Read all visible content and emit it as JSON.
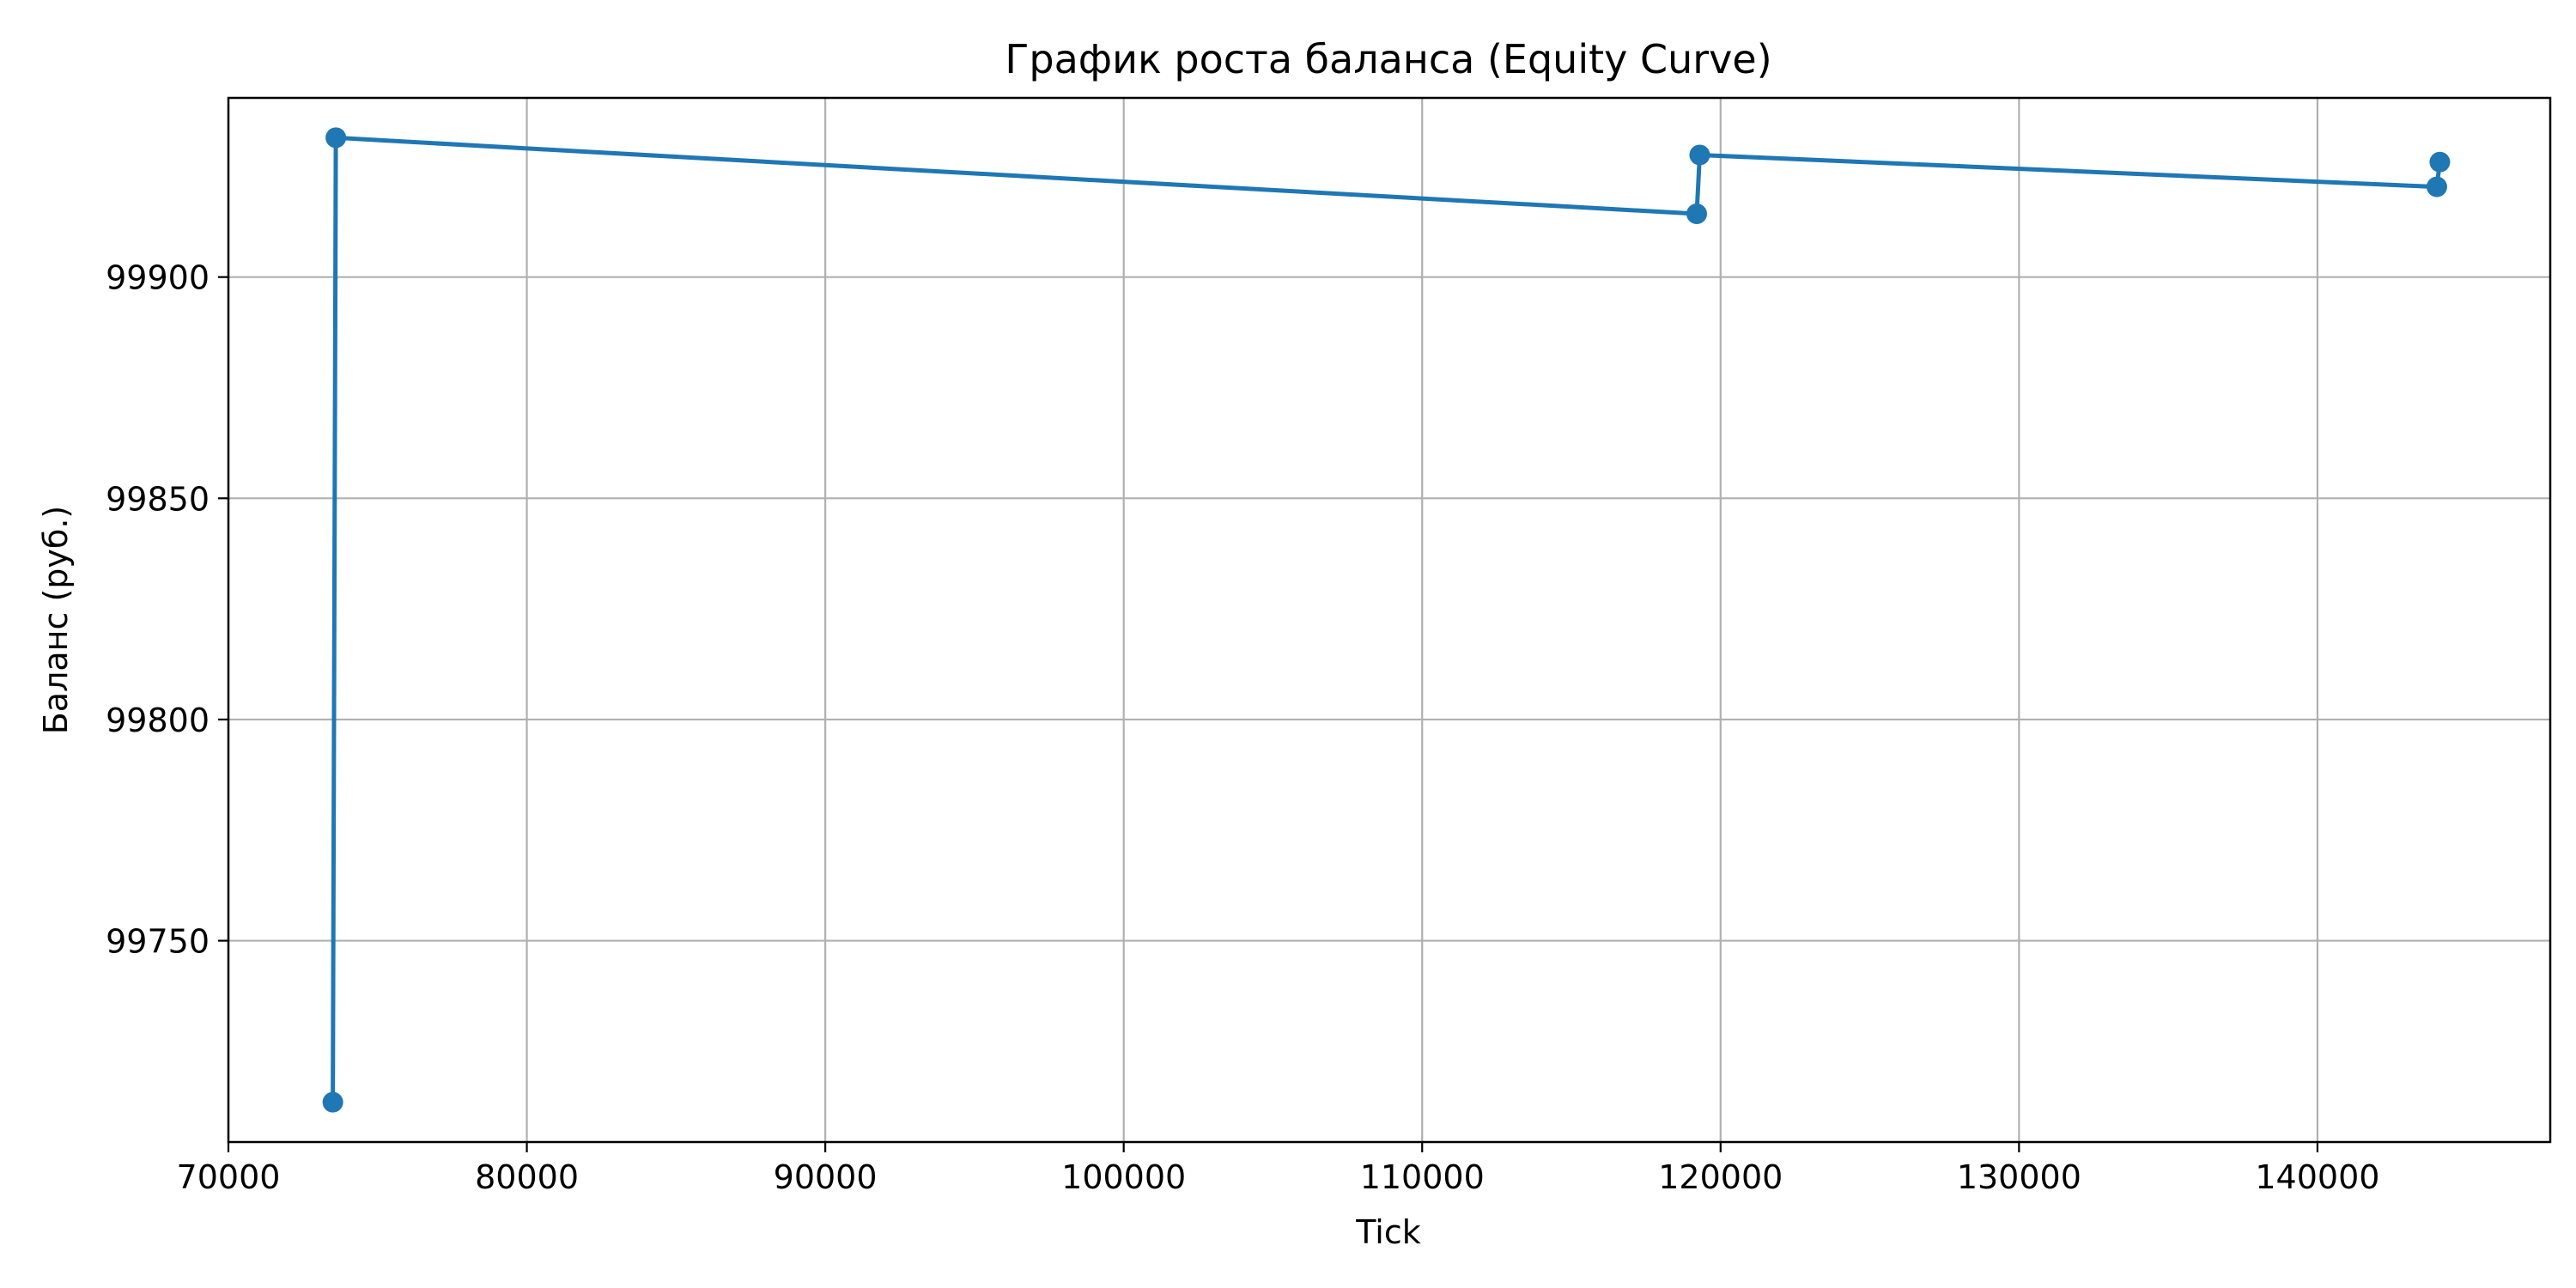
{
  "chart_data": {
    "type": "line",
    "title": "График роста баланса (Equity Curve)",
    "xlabel": "Tick",
    "ylabel": "Баланс (руб.)",
    "xlim": [
      70000,
      147800
    ],
    "ylim": [
      99704.5,
      99940.5
    ],
    "xticks": [
      70000,
      80000,
      90000,
      100000,
      110000,
      120000,
      130000,
      140000
    ],
    "yticks": [
      99750,
      99800,
      99850,
      99900
    ],
    "grid": true,
    "series": [
      {
        "color": "#1f77b4",
        "marker": "circle",
        "points": [
          {
            "x": 73500,
            "y": 99713.5
          },
          {
            "x": 73600,
            "y": 99931.5
          },
          {
            "x": 119200,
            "y": 99914.3
          },
          {
            "x": 119300,
            "y": 99927.6
          },
          {
            "x": 144000,
            "y": 99920.4
          },
          {
            "x": 144100,
            "y": 99926.0
          }
        ]
      }
    ]
  }
}
